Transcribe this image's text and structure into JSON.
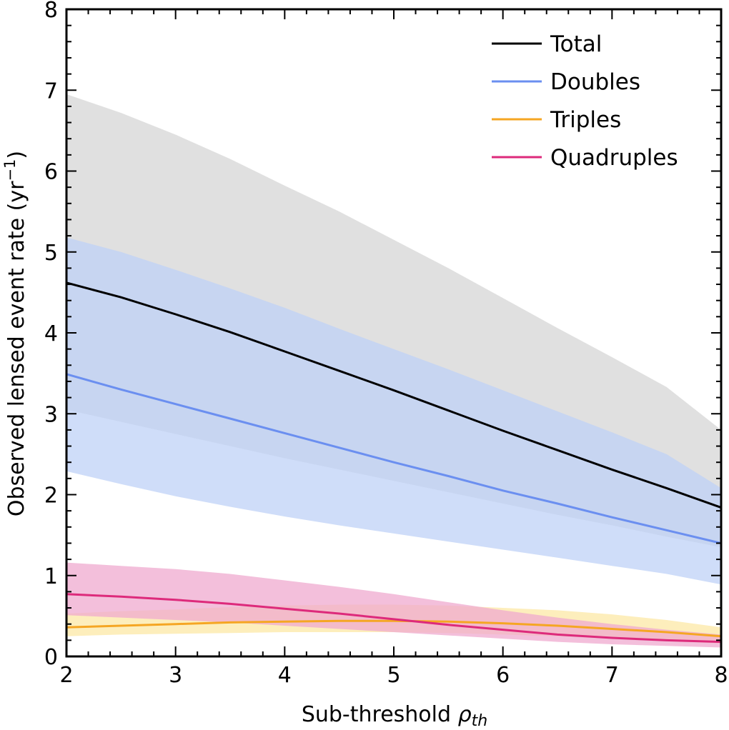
{
  "chart_data": {
    "type": "line",
    "xlabel_main": "Sub-threshold ",
    "xlabel_symbol": "ρ",
    "xlabel_sub": "th",
    "ylabel_main": "Observed lensed event rate (yr",
    "ylabel_sup": "−1",
    "ylabel_close": ")",
    "xlim": [
      2,
      8
    ],
    "ylim": [
      0,
      8
    ],
    "xticks": [
      2,
      3,
      4,
      5,
      6,
      7,
      8
    ],
    "yticks": [
      0,
      1,
      2,
      3,
      4,
      5,
      6,
      7,
      8
    ],
    "x": [
      2,
      2.5,
      3,
      3.5,
      4,
      4.5,
      5,
      5.5,
      6,
      6.5,
      7,
      7.5,
      8
    ],
    "series": [
      {
        "name": "Total",
        "color": "#000000",
        "band_color": "#d6d6d6",
        "values": [
          4.62,
          4.44,
          4.23,
          4.01,
          3.77,
          3.53,
          3.29,
          3.04,
          2.79,
          2.55,
          2.31,
          2.08,
          1.84
        ],
        "lower": [
          3.05,
          2.9,
          2.75,
          2.6,
          2.45,
          2.31,
          2.17,
          2.03,
          1.89,
          1.75,
          1.62,
          1.48,
          1.35
        ],
        "upper": [
          6.95,
          6.72,
          6.45,
          6.15,
          5.82,
          5.5,
          5.15,
          4.8,
          4.43,
          4.06,
          3.7,
          3.33,
          2.8
        ]
      },
      {
        "name": "Doubles",
        "color": "#6b8ff0",
        "band_color": "#bfd1f7",
        "values": [
          3.49,
          3.3,
          3.12,
          2.94,
          2.76,
          2.58,
          2.4,
          2.23,
          2.05,
          1.89,
          1.72,
          1.56,
          1.4
        ],
        "lower": [
          2.29,
          2.13,
          1.98,
          1.85,
          1.73,
          1.62,
          1.52,
          1.42,
          1.32,
          1.22,
          1.12,
          1.02,
          0.89
        ],
        "upper": [
          5.18,
          5.0,
          4.78,
          4.55,
          4.31,
          4.05,
          3.8,
          3.55,
          3.29,
          3.03,
          2.77,
          2.5,
          2.08
        ]
      },
      {
        "name": "Triples",
        "color": "#f5a623",
        "band_color": "#fce8a6",
        "values": [
          0.36,
          0.38,
          0.4,
          0.42,
          0.43,
          0.44,
          0.44,
          0.43,
          0.41,
          0.38,
          0.34,
          0.3,
          0.25
        ],
        "lower": [
          0.25,
          0.27,
          0.28,
          0.29,
          0.3,
          0.3,
          0.3,
          0.29,
          0.27,
          0.25,
          0.22,
          0.19,
          0.16
        ],
        "upper": [
          0.53,
          0.56,
          0.58,
          0.61,
          0.63,
          0.64,
          0.64,
          0.63,
          0.6,
          0.57,
          0.52,
          0.45,
          0.36
        ]
      },
      {
        "name": "Quadruples",
        "color": "#dd2a7b",
        "band_color": "#efaacf",
        "values": [
          0.77,
          0.74,
          0.7,
          0.65,
          0.59,
          0.53,
          0.46,
          0.39,
          0.33,
          0.27,
          0.23,
          0.2,
          0.18
        ],
        "lower": [
          0.51,
          0.48,
          0.45,
          0.42,
          0.38,
          0.34,
          0.3,
          0.26,
          0.22,
          0.18,
          0.15,
          0.13,
          0.11
        ],
        "upper": [
          1.16,
          1.12,
          1.08,
          1.02,
          0.94,
          0.86,
          0.77,
          0.67,
          0.57,
          0.48,
          0.4,
          0.33,
          0.27
        ]
      }
    ],
    "legend_position": "top-right"
  }
}
